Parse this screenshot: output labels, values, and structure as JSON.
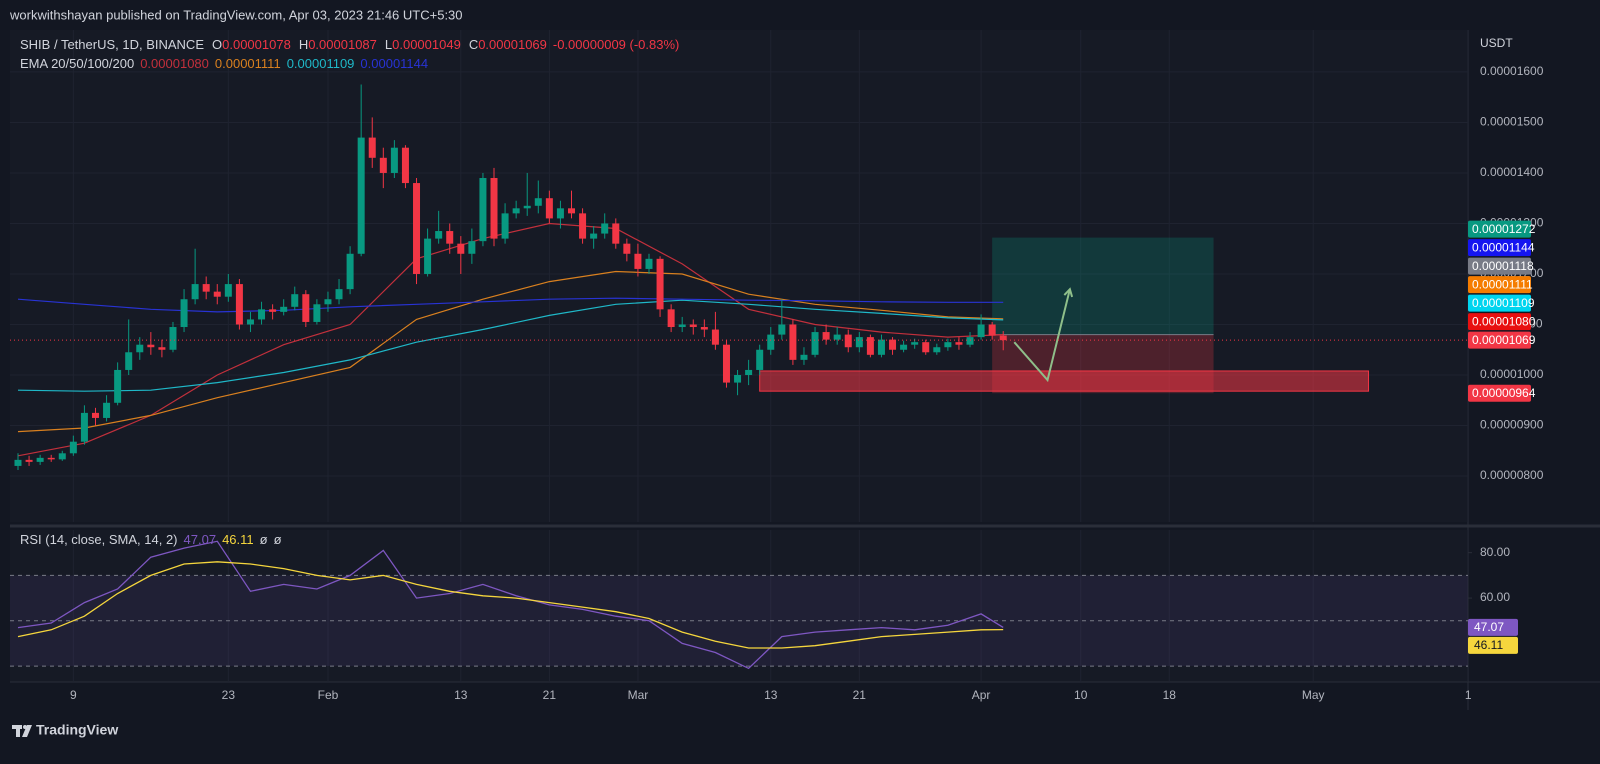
{
  "header": {
    "publisher": "workwithshayan published on TradingView.com, Apr 03, 2023 21:46 UTC+5:30"
  },
  "chart_data": [
    {
      "type": "candlestick",
      "title": "SHIB / TetherUS, 1D, BINANCE",
      "ohlc_legend": [
        {
          "key": "O",
          "label": "0.00001078"
        },
        {
          "key": "H",
          "label": "0.00001087"
        },
        {
          "key": "L",
          "label": "0.00001049"
        },
        {
          "key": "C",
          "label": "0.00001069"
        }
      ],
      "change_label": "-0.00000009 (-0.83%)",
      "unit": "USDT",
      "indicator_label": "EMA 20/50/100/200",
      "up_color": "#089981",
      "down_color": "#f23645",
      "ylim": [
        7.09e-06,
        1.683e-05
      ],
      "yticks": [
        {
          "value": 1.6e-05,
          "label": "0.00001600"
        },
        {
          "value": 1.5e-05,
          "label": "0.00001500"
        },
        {
          "value": 1.4e-05,
          "label": "0.00001400"
        },
        {
          "value": 1.3e-05,
          "label": "0.00001300"
        },
        {
          "value": 1.2e-05,
          "label": "0.00001200"
        },
        {
          "value": 1.1e-05,
          "label": "0.00001100"
        },
        {
          "value": 1e-05,
          "label": "0.00001000"
        },
        {
          "value": 9e-06,
          "label": "0.00000900"
        },
        {
          "value": 8e-06,
          "label": "0.00000800"
        }
      ],
      "xticks": [
        {
          "value": "Jan 09",
          "label": "9"
        },
        {
          "value": "Jan 23",
          "label": "23"
        },
        {
          "value": "Feb 01",
          "label": "Feb"
        },
        {
          "value": "Feb 13",
          "label": "13"
        },
        {
          "value": "Feb 21",
          "label": "21"
        },
        {
          "value": "Mar 01",
          "label": "Mar"
        },
        {
          "value": "Mar 13",
          "label": "13"
        },
        {
          "value": "Mar 21",
          "label": "21"
        },
        {
          "value": "Apr 01",
          "label": "Apr"
        },
        {
          "value": "Apr 10",
          "label": "10"
        },
        {
          "value": "Apr 18",
          "label": "18"
        },
        {
          "value": "May 01",
          "label": "May"
        },
        {
          "value": "May 15",
          "label": "1"
        }
      ],
      "grid": true,
      "candles": {
        "x": [
          "Jan 04",
          "Jan 05",
          "Jan 06",
          "Jan 07",
          "Jan 08",
          "Jan 09",
          "Jan 10",
          "Jan 11",
          "Jan 12",
          "Jan 13",
          "Jan 14",
          "Jan 15",
          "Jan 16",
          "Jan 17",
          "Jan 18",
          "Jan 19",
          "Jan 20",
          "Jan 21",
          "Jan 22",
          "Jan 23",
          "Jan 24",
          "Jan 25",
          "Jan 26",
          "Jan 27",
          "Jan 28",
          "Jan 29",
          "Jan 30",
          "Jan 31",
          "Feb 01",
          "Feb 02",
          "Feb 03",
          "Feb 04",
          "Feb 05",
          "Feb 06",
          "Feb 07",
          "Feb 08",
          "Feb 09",
          "Feb 10",
          "Feb 11",
          "Feb 12",
          "Feb 13",
          "Feb 14",
          "Feb 15",
          "Feb 16",
          "Feb 17",
          "Feb 18",
          "Feb 19",
          "Feb 20",
          "Feb 21",
          "Feb 22",
          "Feb 23",
          "Feb 24",
          "Feb 25",
          "Feb 26",
          "Feb 27",
          "Feb 28",
          "Mar 01",
          "Mar 02",
          "Mar 03",
          "Mar 04",
          "Mar 05",
          "Mar 06",
          "Mar 07",
          "Mar 08",
          "Mar 09",
          "Mar 10",
          "Mar 11",
          "Mar 12",
          "Mar 13",
          "Mar 14",
          "Mar 15",
          "Mar 16",
          "Mar 17",
          "Mar 18",
          "Mar 19",
          "Mar 20",
          "Mar 21",
          "Mar 22",
          "Mar 23",
          "Mar 24",
          "Mar 25",
          "Mar 26",
          "Mar 27",
          "Mar 28",
          "Mar 29",
          "Mar 30",
          "Mar 31",
          "Apr 01",
          "Apr 02",
          "Apr 03"
        ],
        "open": [
          8.2e-06,
          8.32e-06,
          8.28e-06,
          8.36e-06,
          8.33e-06,
          8.45e-06,
          8.68e-06,
          9.25e-06,
          9.15e-06,
          9.45e-06,
          1.01e-05,
          1.045e-05,
          1.06e-05,
          1.055e-05,
          1.05e-05,
          1.095e-05,
          1.15e-05,
          1.18e-05,
          1.165e-05,
          1.155e-05,
          1.18e-05,
          1.1e-05,
          1.11e-05,
          1.13e-05,
          1.125e-05,
          1.135e-05,
          1.16e-05,
          1.105e-05,
          1.14e-05,
          1.15e-05,
          1.17e-05,
          1.24e-05,
          1.47e-05,
          1.43e-05,
          1.4e-05,
          1.45e-05,
          1.38e-05,
          1.2e-05,
          1.27e-05,
          1.285e-05,
          1.26e-05,
          1.24e-05,
          1.265e-05,
          1.39e-05,
          1.27e-05,
          1.32e-05,
          1.33e-05,
          1.335e-05,
          1.35e-05,
          1.31e-05,
          1.33e-05,
          1.32e-05,
          1.27e-05,
          1.28e-05,
          1.3e-05,
          1.26e-05,
          1.24e-05,
          1.21e-05,
          1.23e-05,
          1.13e-05,
          1.095e-05,
          1.1e-05,
          1.095e-05,
          1.09e-05,
          1.06e-05,
          9.85e-06,
          1e-05,
          1.01e-05,
          1.05e-05,
          1.08e-05,
          1.1e-05,
          1.03e-05,
          1.04e-05,
          1.085e-05,
          1.07e-05,
          1.08e-05,
          1.055e-05,
          1.075e-05,
          1.04e-05,
          1.07e-05,
          1.05e-05,
          1.06e-05,
          1.065e-05,
          1.045e-05,
          1.055e-05,
          1.065e-05,
          1.06e-05,
          1.075e-05,
          1.1e-05,
          1.078e-05
        ],
        "high": [
          8.45e-06,
          8.4e-06,
          8.42e-06,
          8.42e-06,
          8.5e-06,
          8.8e-06,
          9.4e-06,
          9.35e-06,
          9.6e-06,
          1.025e-05,
          1.11e-05,
          1.075e-05,
          1.085e-05,
          1.07e-05,
          1.105e-05,
          1.17e-05,
          1.25e-05,
          1.195e-05,
          1.18e-05,
          1.2e-05,
          1.19e-05,
          1.125e-05,
          1.145e-05,
          1.14e-05,
          1.15e-05,
          1.175e-05,
          1.168e-05,
          1.15e-05,
          1.165e-05,
          1.19e-05,
          1.255e-05,
          1.575e-05,
          1.51e-05,
          1.45e-05,
          1.465e-05,
          1.455e-05,
          1.39e-05,
          1.29e-05,
          1.325e-05,
          1.3e-05,
          1.275e-05,
          1.29e-05,
          1.4e-05,
          1.41e-05,
          1.34e-05,
          1.345e-05,
          1.4e-05,
          1.385e-05,
          1.365e-05,
          1.345e-05,
          1.365e-05,
          1.33e-05,
          1.295e-05,
          1.32e-05,
          1.31e-05,
          1.27e-05,
          1.26e-05,
          1.24e-05,
          1.235e-05,
          1.14e-05,
          1.115e-05,
          1.11e-05,
          1.11e-05,
          1.125e-05,
          1.07e-05,
          1.01e-05,
          1.03e-05,
          1.06e-05,
          1.095e-05,
          1.15e-05,
          1.11e-05,
          1.055e-05,
          1.095e-05,
          1.1e-05,
          1.095e-05,
          1.09e-05,
          1.085e-05,
          1.08e-05,
          1.08e-05,
          1.075e-05,
          1.068e-05,
          1.072e-05,
          1.07e-05,
          1.062e-05,
          1.072e-05,
          1.075e-05,
          1.085e-05,
          1.12e-05,
          1.105e-05,
          1.087e-05
        ],
        "low": [
          8.12e-06,
          8.2e-06,
          8.22e-06,
          8.28e-06,
          8.3e-06,
          8.4e-06,
          8.62e-06,
          9e-06,
          9.08e-06,
          9.4e-06,
          1e-05,
          1.03e-05,
          1.04e-05,
          1.035e-05,
          1.045e-05,
          1.085e-05,
          1.14e-05,
          1.15e-05,
          1.14e-05,
          1.145e-05,
          1.09e-05,
          1.085e-05,
          1.1e-05,
          1.11e-05,
          1.118e-05,
          1.128e-05,
          1.095e-05,
          1.1e-05,
          1.125e-05,
          1.14e-05,
          1.16e-05,
          1.235e-05,
          1.41e-05,
          1.37e-05,
          1.39e-05,
          1.37e-05,
          1.18e-05,
          1.195e-05,
          1.26e-05,
          1.24e-05,
          1.2e-05,
          1.22e-05,
          1.255e-05,
          1.255e-05,
          1.26e-05,
          1.31e-05,
          1.315e-05,
          1.32e-05,
          1.3e-05,
          1.29e-05,
          1.31e-05,
          1.26e-05,
          1.25e-05,
          1.27e-05,
          1.25e-05,
          1.225e-05,
          1.195e-05,
          1.2e-05,
          1.115e-05,
          1.085e-05,
          1.085e-05,
          1.08e-05,
          1.075e-05,
          1.05e-05,
          9.75e-06,
          9.6e-06,
          9.8e-06,
          1e-05,
          1.04e-05,
          1.07e-05,
          1.02e-05,
          1.02e-05,
          1.035e-05,
          1.06e-05,
          1.06e-05,
          1.045e-05,
          1.045e-05,
          1.035e-05,
          1.035e-05,
          1.04e-05,
          1.045e-05,
          1.052e-05,
          1.04e-05,
          1.04e-05,
          1.048e-05,
          1.05e-05,
          1.055e-05,
          1.07e-05,
          1.07e-05,
          1.049e-05
        ],
        "close": [
          8.32e-06,
          8.28e-06,
          8.36e-06,
          8.33e-06,
          8.45e-06,
          8.68e-06,
          9.25e-06,
          9.15e-06,
          9.45e-06,
          1.01e-05,
          1.045e-05,
          1.06e-05,
          1.055e-05,
          1.05e-05,
          1.095e-05,
          1.15e-05,
          1.18e-05,
          1.165e-05,
          1.155e-05,
          1.18e-05,
          1.1e-05,
          1.11e-05,
          1.13e-05,
          1.125e-05,
          1.135e-05,
          1.16e-05,
          1.105e-05,
          1.14e-05,
          1.15e-05,
          1.17e-05,
          1.24e-05,
          1.47e-05,
          1.43e-05,
          1.4e-05,
          1.45e-05,
          1.38e-05,
          1.2e-05,
          1.27e-05,
          1.285e-05,
          1.26e-05,
          1.24e-05,
          1.265e-05,
          1.39e-05,
          1.27e-05,
          1.32e-05,
          1.33e-05,
          1.335e-05,
          1.35e-05,
          1.31e-05,
          1.33e-05,
          1.32e-05,
          1.27e-05,
          1.28e-05,
          1.3e-05,
          1.26e-05,
          1.24e-05,
          1.21e-05,
          1.23e-05,
          1.13e-05,
          1.095e-05,
          1.1e-05,
          1.095e-05,
          1.09e-05,
          1.06e-05,
          9.85e-06,
          1e-05,
          1.01e-05,
          1.05e-05,
          1.08e-05,
          1.1e-05,
          1.03e-05,
          1.04e-05,
          1.085e-05,
          1.07e-05,
          1.08e-05,
          1.055e-05,
          1.075e-05,
          1.04e-05,
          1.07e-05,
          1.05e-05,
          1.06e-05,
          1.065e-05,
          1.045e-05,
          1.055e-05,
          1.065e-05,
          1.06e-05,
          1.075e-05,
          1.1e-05,
          1.078e-05,
          1.069e-05
        ]
      },
      "ema": [
        {
          "color": "#c2303c",
          "label": "0.00001080",
          "x": [
            "Jan 04",
            "Jan 10",
            "Jan 16",
            "Jan 22",
            "Jan 28",
            "Feb 03",
            "Feb 09",
            "Feb 15",
            "Feb 21",
            "Feb 27",
            "Mar 05",
            "Mar 11",
            "Mar 17",
            "Mar 23",
            "Mar 29",
            "Apr 03"
          ],
          "values": [
            8.4e-06,
            8.65e-06,
            9.2e-06,
            1e-05,
            1.06e-05,
            1.1e-05,
            1.23e-05,
            1.27e-05,
            1.3e-05,
            1.29e-05,
            1.22e-05,
            1.13e-05,
            1.1e-05,
            1.085e-05,
            1.075e-05,
            1.08e-05
          ]
        },
        {
          "color": "#d9801f",
          "label": "0.00001111",
          "x": [
            "Jan 04",
            "Jan 10",
            "Jan 16",
            "Jan 22",
            "Jan 28",
            "Feb 03",
            "Feb 09",
            "Feb 15",
            "Feb 21",
            "Feb 27",
            "Mar 05",
            "Mar 11",
            "Mar 17",
            "Mar 23",
            "Mar 29",
            "Apr 03"
          ],
          "values": [
            8.88e-06,
            8.95e-06,
            9.2e-06,
            9.55e-06,
            9.85e-06,
            1.015e-05,
            1.11e-05,
            1.15e-05,
            1.185e-05,
            1.205e-05,
            1.2e-05,
            1.16e-05,
            1.14e-05,
            1.128e-05,
            1.115e-05,
            1.111e-05
          ]
        },
        {
          "color": "#1fb8c8",
          "label": "0.00001109",
          "x": [
            "Jan 04",
            "Jan 10",
            "Jan 16",
            "Jan 22",
            "Jan 28",
            "Feb 03",
            "Feb 09",
            "Feb 15",
            "Feb 21",
            "Feb 27",
            "Mar 05",
            "Mar 11",
            "Mar 17",
            "Mar 23",
            "Mar 29",
            "Apr 03"
          ],
          "values": [
            9.7e-06,
            9.68e-06,
            9.7e-06,
            9.85e-06,
            1.005e-05,
            1.03e-05,
            1.065e-05,
            1.09e-05,
            1.118e-05,
            1.14e-05,
            1.148e-05,
            1.14e-05,
            1.13e-05,
            1.122e-05,
            1.113e-05,
            1.109e-05
          ]
        },
        {
          "color": "#2833d4",
          "label": "0.00001144",
          "x": [
            "Jan 04",
            "Jan 10",
            "Jan 16",
            "Jan 22",
            "Jan 28",
            "Feb 03",
            "Feb 09",
            "Feb 15",
            "Feb 21",
            "Feb 27",
            "Mar 05",
            "Mar 11",
            "Mar 17",
            "Mar 23",
            "Mar 29",
            "Apr 03"
          ],
          "values": [
            1.15e-05,
            1.14e-05,
            1.13e-05,
            1.125e-05,
            1.128e-05,
            1.135e-05,
            1.14e-05,
            1.145e-05,
            1.15e-05,
            1.152e-05,
            1.15e-05,
            1.148e-05,
            1.147e-05,
            1.145e-05,
            1.144e-05,
            1.144e-05
          ]
        }
      ],
      "position": {
        "start": "Apr 02",
        "end": "Apr 22",
        "entry": 1.08e-05,
        "target": 1.272e-05,
        "stop": 9.64e-06
      },
      "support_zone": {
        "start": "Mar 12",
        "end": "May 06",
        "top": 1.008e-05,
        "bottom": 9.68e-06
      },
      "arrow": {
        "x": [
          "Apr 04",
          "Apr 07",
          "Apr 09"
        ],
        "values": [
          1.065e-05,
          9.9e-06,
          1.168e-05
        ]
      },
      "price_badges": [
        {
          "value": 1.272e-05,
          "label": "0.00001272",
          "color": "#089981"
        },
        {
          "value": 1.144e-05,
          "label": "0.00001144",
          "color": "#1515f0"
        },
        {
          "value": 1.118e-05,
          "label": "0.00001118",
          "color": "#787b86"
        },
        {
          "value": 1.111e-05,
          "label": "0.00001111",
          "color": "#f57c00"
        },
        {
          "value": 1.109e-05,
          "label": "0.00001109",
          "color": "#00d5ef"
        },
        {
          "value": 1.08e-05,
          "label": "0.00001080",
          "color": "#e81010"
        },
        {
          "value": 1.069e-05,
          "label": "0.00001069",
          "color": "#f23645"
        },
        {
          "value": 9.64e-06,
          "label": "0.00000964",
          "color": "#f23645"
        }
      ]
    },
    {
      "type": "line",
      "title": "RSI (14, close, SMA, 14, 2)",
      "extra_legend": [
        "ø",
        "ø"
      ],
      "ylim": [
        23,
        90
      ],
      "yticks": [
        {
          "value": 80,
          "label": "80.00"
        },
        {
          "value": 60,
          "label": "60.00"
        }
      ],
      "levels": [
        70,
        50,
        30
      ],
      "series": [
        {
          "color": "#7e57c2",
          "x": [
            "Jan 04",
            "Jan 07",
            "Jan 10",
            "Jan 13",
            "Jan 16",
            "Jan 19",
            "Jan 22",
            "Jan 25",
            "Jan 28",
            "Jan 31",
            "Feb 03",
            "Feb 06",
            "Feb 09",
            "Feb 12",
            "Feb 15",
            "Feb 18",
            "Feb 21",
            "Feb 24",
            "Feb 27",
            "Mar 02",
            "Mar 05",
            "Mar 08",
            "Mar 11",
            "Mar 14",
            "Mar 17",
            "Mar 20",
            "Mar 23",
            "Mar 26",
            "Mar 29",
            "Apr 01",
            "Apr 03"
          ],
          "values": [
            47,
            49,
            58,
            64,
            78,
            82,
            85,
            63,
            66,
            64,
            70,
            81,
            60,
            62,
            66,
            61,
            57,
            55,
            52,
            50,
            40,
            36,
            29,
            43,
            45,
            46,
            47,
            46,
            48,
            53,
            47.07
          ]
        },
        {
          "color": "#f5d63d",
          "x": [
            "Jan 04",
            "Jan 07",
            "Jan 10",
            "Jan 13",
            "Jan 16",
            "Jan 19",
            "Jan 22",
            "Jan 25",
            "Jan 28",
            "Jan 31",
            "Feb 03",
            "Feb 06",
            "Feb 09",
            "Feb 12",
            "Feb 15",
            "Feb 18",
            "Feb 21",
            "Feb 24",
            "Feb 27",
            "Mar 02",
            "Mar 05",
            "Mar 08",
            "Mar 11",
            "Mar 14",
            "Mar 17",
            "Mar 20",
            "Mar 23",
            "Mar 26",
            "Mar 29",
            "Apr 01",
            "Apr 03"
          ],
          "values": [
            43,
            46,
            52,
            62,
            70,
            75,
            76,
            75,
            73,
            70,
            68,
            70,
            66,
            63,
            61,
            60,
            58,
            56,
            54,
            51,
            45,
            41,
            38,
            38,
            39,
            41,
            43,
            44,
            45,
            46,
            46.11
          ]
        }
      ]
    }
  ],
  "footer": {
    "brand": "TradingView"
  }
}
